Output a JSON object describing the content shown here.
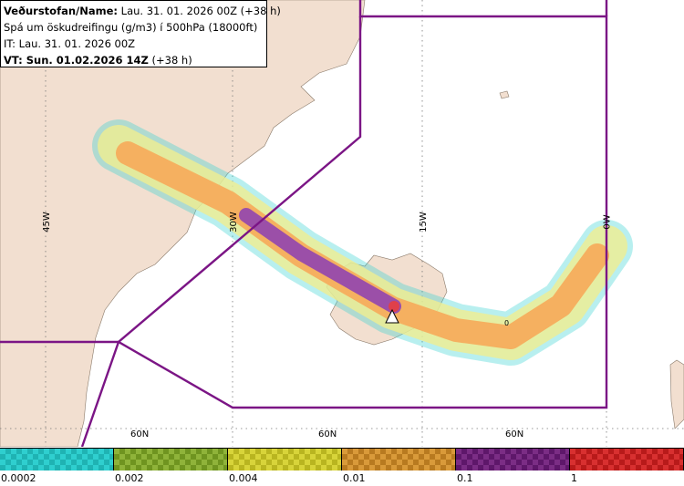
{
  "header": {
    "line1_label": "Veðurstofan/Name:",
    "line1_value": " Lau. 31. 01. 2026 00Z (+38 h)",
    "line2": "Spá um öskudreifingu (g/m3) í 500hPa (18000ft)",
    "line3": "IT: Lau. 31. 01. 2026 00Z",
    "line4_label": "VT: Sun. 01.02.2026 14Z",
    "line4_value": " (+38 h)"
  },
  "map": {
    "longitude_labels": [
      "45W",
      "30W",
      "15W",
      "0W"
    ],
    "latitude_labels": [
      "60N",
      "60N",
      "60N"
    ],
    "plume_contour_label": "0",
    "volcano_marker": "triangle-icon",
    "colors": {
      "land": "#f2dfd0",
      "sea": "#ffffff",
      "boundary": "#7b1585"
    }
  },
  "legend": {
    "items": [
      {
        "label": "0.0002",
        "color": "#2fcfcf",
        "dark": "#1fb3b3"
      },
      {
        "label": "0.002",
        "color": "#8fb33a",
        "dark": "#6f9420"
      },
      {
        "label": "0.004",
        "color": "#d8d43a",
        "dark": "#b9b520"
      },
      {
        "label": "0.01",
        "color": "#d99a3a",
        "dark": "#b87a20"
      },
      {
        "label": "0.1",
        "color": "#7b2d85",
        "dark": "#5e176a"
      },
      {
        "label": "1",
        "color": "#d83030",
        "dark": "#b81a1a"
      }
    ]
  }
}
